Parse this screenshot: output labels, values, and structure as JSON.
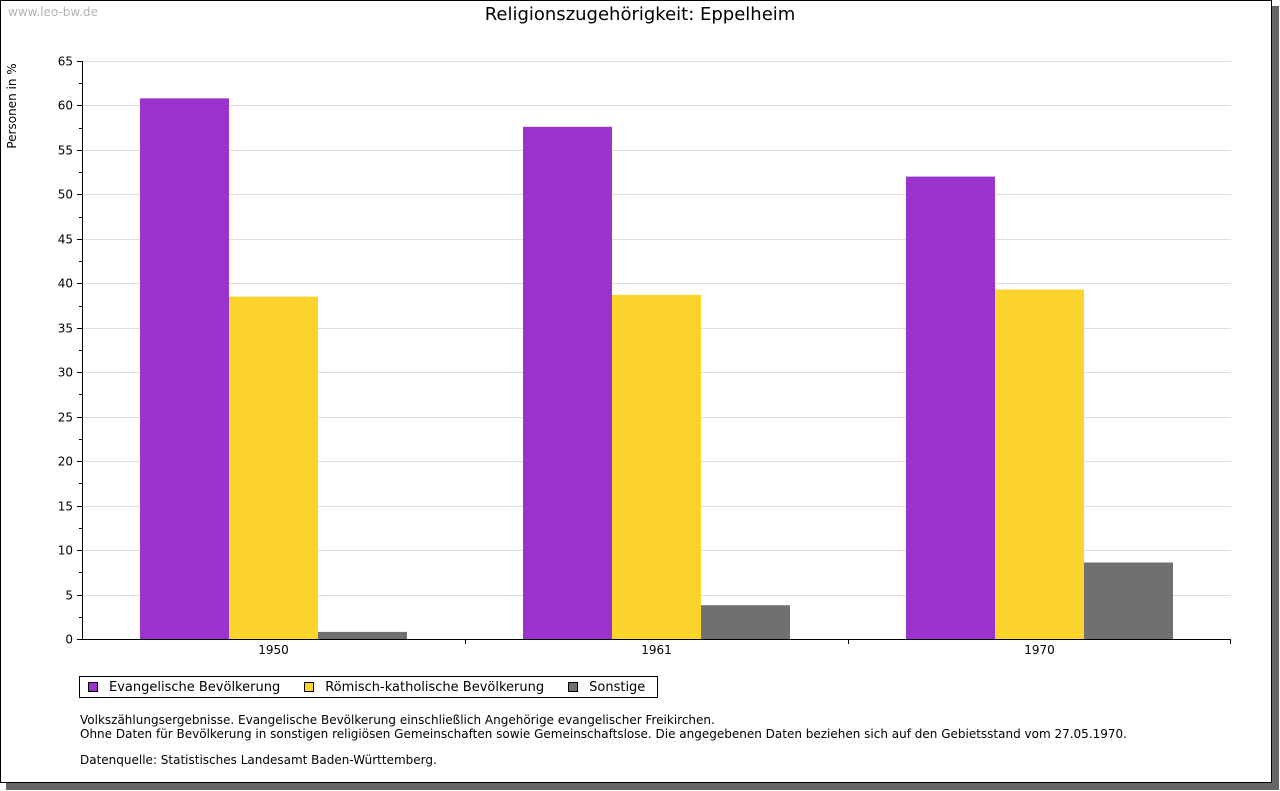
{
  "watermark": "www.leo-bw.de",
  "chart_data": {
    "type": "bar",
    "title": "Religionszugehörigkeit: Eppelheim",
    "ylabel": "Personen in %",
    "xlabel": "",
    "categories": [
      "1950",
      "1961",
      "1970"
    ],
    "series": [
      {
        "name": "Evangelische Bevölkerung",
        "color": "#9933cc",
        "values": [
          60.8,
          57.6,
          52.0
        ]
      },
      {
        "name": "Römisch-katholische Bevölkerung",
        "color": "#fcd42c",
        "values": [
          38.5,
          38.7,
          39.3
        ]
      },
      {
        "name": "Sonstige",
        "color": "#707070",
        "values": [
          0.8,
          3.8,
          8.6
        ]
      }
    ],
    "ylim": [
      0,
      65
    ],
    "yticks": [
      "0",
      "5",
      "10",
      "15",
      "20",
      "25",
      "30",
      "35",
      "40",
      "45",
      "50",
      "55",
      "60",
      "65"
    ],
    "grid": true,
    "legend_position": "bottom"
  },
  "notes": {
    "line1": "Volkszählungsergebnisse. Evangelische Bevölkerung einschließlich Angehörige evangelischer Freikirchen.",
    "line2": "Ohne Daten für Bevölkerung in sonstigen religiösen Gemeinschaften sowie Gemeinschaftslose. Die angegebenen Daten beziehen sich auf den Gebietsstand vom 27.05.1970.",
    "source": "Datenquelle: Statistisches Landesamt Baden-Württemberg."
  }
}
